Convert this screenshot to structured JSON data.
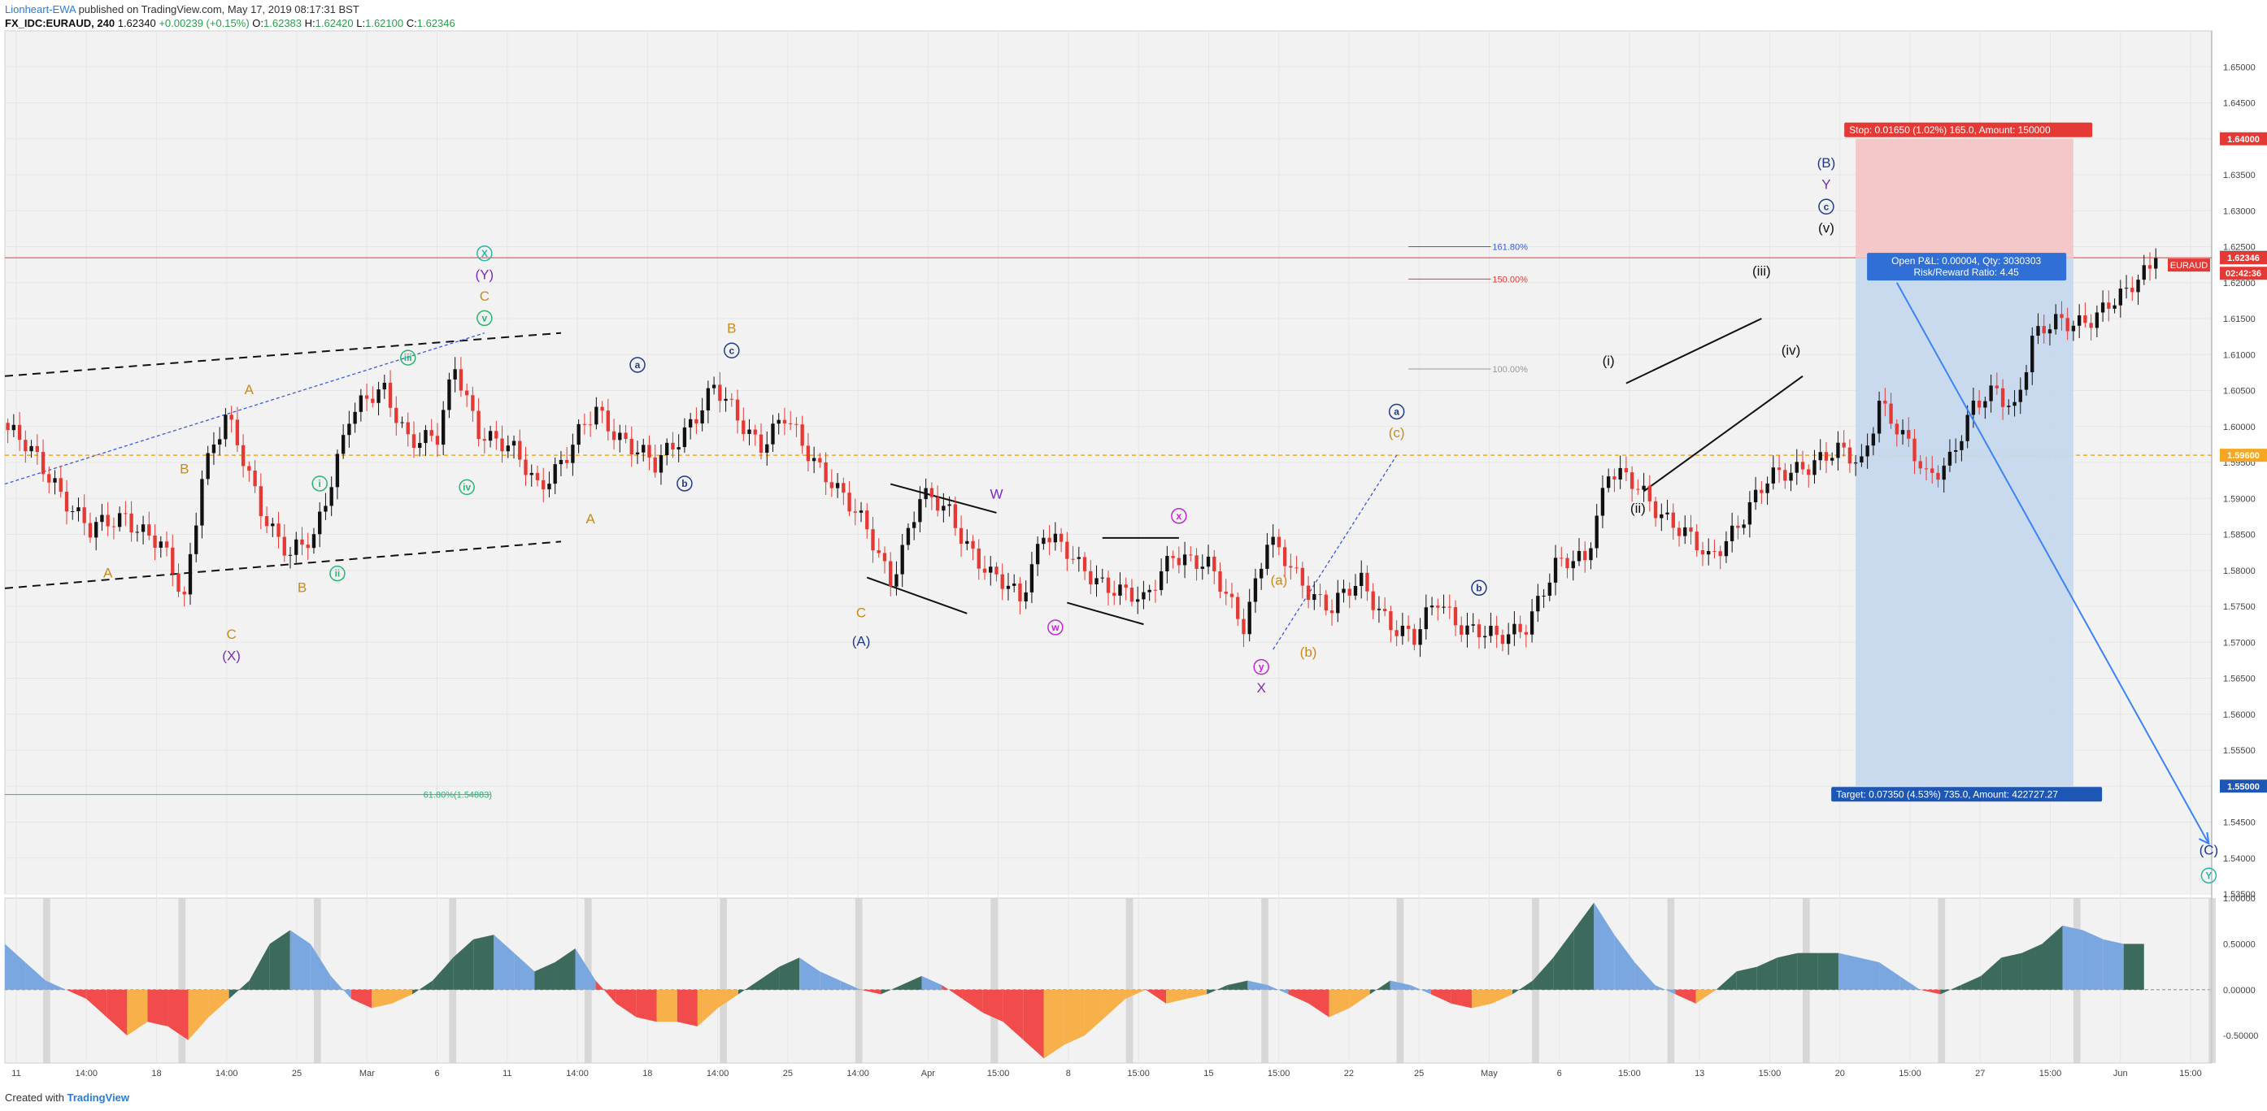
{
  "header": {
    "author": "Lionheart-EWA",
    "published": "published on TradingView.com, May 17, 2019 08:17:31 BST",
    "symbol": "FX_IDC:EURAUD, 240",
    "last": "1.62340",
    "change": "+0.00239 (+0.15%)",
    "o_label": "O:",
    "o": "1.62383",
    "h_label": "H:",
    "h": "1.62420",
    "l_label": "L:",
    "l": "1.62100",
    "c_label": "C:",
    "c": "1.62346"
  },
  "footer": {
    "created": "Created with",
    "brand": "TradingView"
  },
  "colors": {
    "up": "#111111",
    "down": "#e53935",
    "grid": "#e6e6e6",
    "bg": "#f2f2f2",
    "stop_zone": "#f4c3c3",
    "target_zone": "#c4d7ee",
    "ma_line": "#f5a623",
    "hist_pos_light": "#7aa7e0",
    "hist_pos_dark": "#3c6a5c",
    "hist_neg_light": "#f8b04a",
    "hist_neg_dark": "#f24b4b"
  },
  "chart_data": {
    "type": "candlestick",
    "symbol": "FX_IDC:EURAUD",
    "interval": "240",
    "ylim": [
      1.535,
      1.655
    ],
    "y_ticks": [
      "1.65000",
      "1.64500",
      "1.64000",
      "1.63500",
      "1.63000",
      "1.62500",
      "1.62000",
      "1.61500",
      "1.61000",
      "1.60500",
      "1.60000",
      "1.59500",
      "1.59000",
      "1.58500",
      "1.58000",
      "1.57500",
      "1.57000",
      "1.56500",
      "1.56000",
      "1.55500",
      "1.55000",
      "1.54500",
      "1.54000",
      "1.53500"
    ],
    "x_ticks": [
      "11",
      "14:00",
      "18",
      "14:00",
      "25",
      "Mar",
      "6",
      "11",
      "14:00",
      "18",
      "14:00",
      "25",
      "14:00",
      "Apr",
      "15:00",
      "8",
      "15:00",
      "15",
      "15:00",
      "22",
      "25",
      "May",
      "6",
      "15:00",
      "13",
      "15:00",
      "20",
      "15:00",
      "27",
      "15:00",
      "Jun",
      "15:00"
    ],
    "price_anchors": [
      [
        0,
        1.5995
      ],
      [
        8,
        1.5925
      ],
      [
        14,
        1.585
      ],
      [
        20,
        1.588
      ],
      [
        26,
        1.583
      ],
      [
        30,
        1.576
      ],
      [
        33,
        1.594
      ],
      [
        37,
        1.601
      ],
      [
        43,
        1.589
      ],
      [
        48,
        1.582
      ],
      [
        52,
        1.584
      ],
      [
        58,
        1.602
      ],
      [
        64,
        1.6045
      ],
      [
        68,
        1.599
      ],
      [
        73,
        1.598
      ],
      [
        76,
        1.608
      ],
      [
        80,
        1.6
      ],
      [
        86,
        1.596
      ],
      [
        90,
        1.592
      ],
      [
        95,
        1.596
      ],
      [
        100,
        1.602
      ],
      [
        106,
        1.5975
      ],
      [
        110,
        1.594
      ],
      [
        116,
        1.601
      ],
      [
        120,
        1.605
      ],
      [
        124,
        1.601
      ],
      [
        128,
        1.598
      ],
      [
        132,
        1.601
      ],
      [
        135,
        1.597
      ],
      [
        140,
        1.593
      ],
      [
        146,
        1.585
      ],
      [
        150,
        1.579
      ],
      [
        155,
        1.59
      ],
      [
        160,
        1.588
      ],
      [
        167,
        1.579
      ],
      [
        172,
        1.576
      ],
      [
        176,
        1.586
      ],
      [
        182,
        1.58
      ],
      [
        188,
        1.578
      ],
      [
        193,
        1.575
      ],
      [
        198,
        1.583
      ],
      [
        204,
        1.58
      ],
      [
        210,
        1.573
      ],
      [
        214,
        1.584
      ],
      [
        219,
        1.579
      ],
      [
        225,
        1.575
      ],
      [
        230,
        1.578
      ],
      [
        235,
        1.573
      ],
      [
        239,
        1.57
      ],
      [
        243,
        1.576
      ],
      [
        248,
        1.572
      ],
      [
        253,
        1.57
      ],
      [
        258,
        1.573
      ],
      [
        263,
        1.58
      ],
      [
        268,
        1.582
      ],
      [
        272,
        1.594
      ],
      [
        277,
        1.591
      ],
      [
        283,
        1.587
      ],
      [
        289,
        1.581
      ],
      [
        294,
        1.587
      ],
      [
        299,
        1.592
      ],
      [
        305,
        1.595
      ],
      [
        311,
        1.596
      ],
      [
        315,
        1.595
      ],
      [
        318,
        1.604
      ],
      [
        322,
        1.598
      ],
      [
        326,
        1.593
      ],
      [
        330,
        1.596
      ],
      [
        334,
        1.602
      ],
      [
        338,
        1.605
      ],
      [
        341,
        1.603
      ],
      [
        344,
        1.612
      ],
      [
        348,
        1.614
      ],
      [
        352,
        1.615
      ],
      [
        356,
        1.616
      ],
      [
        360,
        1.618
      ],
      [
        362,
        1.621
      ],
      [
        365,
        1.6234
      ]
    ],
    "series": [
      {
        "type": "line",
        "values": [
          1.596
        ]
      },
      {
        "type": "histogram",
        "values": [
          0.5,
          0.3,
          0.1,
          0.0,
          -0.1,
          -0.3,
          -0.5,
          -0.35,
          -0.4,
          -0.55,
          -0.3,
          -0.1,
          0.1,
          0.5,
          0.65,
          0.5,
          0.15,
          -0.1,
          -0.2,
          -0.15,
          -0.05,
          0.1,
          0.35,
          0.55,
          0.6,
          0.4,
          0.2,
          0.3,
          0.45,
          0.1,
          -0.15,
          -0.3,
          -0.35,
          -0.35,
          -0.4,
          -0.2,
          -0.05,
          0.1,
          0.25,
          0.35,
          0.2,
          0.1,
          0.0,
          -0.05,
          0.05,
          0.15,
          0.05,
          -0.1,
          -0.25,
          -0.35,
          -0.55,
          -0.75,
          -0.6,
          -0.5,
          -0.3,
          -0.1,
          0.0,
          -0.15,
          -0.1,
          -0.05,
          0.05,
          0.1,
          0.05,
          -0.05,
          -0.15,
          -0.3,
          -0.2,
          -0.05,
          0.1,
          0.05,
          -0.05,
          -0.15,
          -0.2,
          -0.15,
          -0.05,
          0.1,
          0.35,
          0.65,
          0.95,
          0.6,
          0.3,
          0.05,
          -0.05,
          -0.15,
          0.0,
          0.2,
          0.25,
          0.35,
          0.4,
          0.4,
          0.4,
          0.35,
          0.3,
          0.15,
          0.0,
          -0.05,
          0.05,
          0.15,
          0.35,
          0.4,
          0.5,
          0.7,
          0.65,
          0.55,
          0.5,
          0.5
        ]
      }
    ],
    "oscillator_ylim": [
      -0.8,
      1.0
    ],
    "oscillator_ticks": [
      "1.00000",
      "0.50000",
      "0.00000",
      "-0.50000"
    ],
    "price_tags": [
      {
        "label": "1.64000",
        "value": 1.64,
        "color": "#e53935"
      },
      {
        "label": "1.62350",
        "value": 1.6235,
        "color": "#111111"
      },
      {
        "label": "1.62346",
        "value": 1.62346,
        "color": "#e53935"
      },
      {
        "label": "02:42:36",
        "value": 1.6213,
        "color": "#e53935"
      },
      {
        "label": "1.59600",
        "value": 1.596,
        "color": "#f5a623"
      },
      {
        "label": "1.55000",
        "value": 1.55,
        "color": "#1e56b5"
      }
    ],
    "symbol_tag": "EURAUD",
    "position": {
      "stop_text": "Stop: 0.01650 (1.02%) 165.0, Amount: 150000",
      "pnl_text": "Open P&L: 0.00004, Qty: 3030303",
      "rr_text": "Risk/Reward Ratio: 4.45",
      "target_text": "Target: 0.07350 (4.53%) 735.0, Amount: 422727.27",
      "entry": 1.62346,
      "stop": 1.64,
      "target": 1.55
    },
    "fib_levels": [
      {
        "label": "161.80%",
        "value": 1.625,
        "color": "#3b5bdb"
      },
      {
        "label": "150.00%",
        "value": 1.6205,
        "color": "#e53935"
      },
      {
        "label": "100.00%",
        "value": 1.608,
        "color": "#999999"
      },
      {
        "label": "61.80%(1.54883)",
        "value": 1.54883,
        "color": "#2ab573"
      }
    ],
    "wave_labels": [
      {
        "text": "A",
        "color": "#c98a1a",
        "circled": false,
        "x": 17,
        "y": 1.579
      },
      {
        "text": "B",
        "color": "#c98a1a",
        "circled": false,
        "x": 30,
        "y": 1.5935
      },
      {
        "text": "C",
        "color": "#c98a1a",
        "circled": false,
        "x": 38,
        "y": 1.5705
      },
      {
        "text": "(X)",
        "color": "#7b2cbf",
        "circled": false,
        "x": 38,
        "y": 1.5675
      },
      {
        "text": "A",
        "color": "#c98a1a",
        "circled": false,
        "x": 41,
        "y": 1.6045
      },
      {
        "text": "B",
        "color": "#c98a1a",
        "circled": false,
        "x": 50,
        "y": 1.577
      },
      {
        "text": "i",
        "color": "#2ab573",
        "circled": true,
        "x": 53,
        "y": 1.5915
      },
      {
        "text": "ii",
        "color": "#2ab573",
        "circled": true,
        "x": 56,
        "y": 1.579
      },
      {
        "text": "iii",
        "color": "#2ab573",
        "circled": true,
        "x": 68,
        "y": 1.609
      },
      {
        "text": "iv",
        "color": "#2ab573",
        "circled": true,
        "x": 78,
        "y": 1.591
      },
      {
        "text": "v",
        "color": "#2ab573",
        "circled": true,
        "x": 81,
        "y": 1.6145
      },
      {
        "text": "C",
        "color": "#c98a1a",
        "circled": false,
        "x": 81,
        "y": 1.6175
      },
      {
        "text": "(Y)",
        "color": "#7b2cbf",
        "circled": false,
        "x": 81,
        "y": 1.6205
      },
      {
        "text": "X",
        "color": "#2ab5a5",
        "circled": true,
        "x": 81,
        "y": 1.6235
      },
      {
        "text": "A",
        "color": "#c98a1a",
        "circled": false,
        "x": 99,
        "y": 1.5865
      },
      {
        "text": "a",
        "color": "#1e3a8a",
        "circled": true,
        "x": 107,
        "y": 1.608
      },
      {
        "text": "b",
        "color": "#1e3a8a",
        "circled": true,
        "x": 115,
        "y": 1.5915
      },
      {
        "text": "B",
        "color": "#c98a1a",
        "circled": false,
        "x": 123,
        "y": 1.613
      },
      {
        "text": "c",
        "color": "#1e3a8a",
        "circled": true,
        "x": 123,
        "y": 1.61
      },
      {
        "text": "C",
        "color": "#c98a1a",
        "circled": false,
        "x": 145,
        "y": 1.5735
      },
      {
        "text": "(A)",
        "color": "#1e3a8a",
        "circled": false,
        "x": 145,
        "y": 1.5695
      },
      {
        "text": "W",
        "color": "#7b2cbf",
        "circled": false,
        "x": 168,
        "y": 1.59
      },
      {
        "text": "w",
        "color": "#c026d3",
        "circled": true,
        "x": 178,
        "y": 1.5715
      },
      {
        "text": "x",
        "color": "#c026d3",
        "circled": true,
        "x": 199,
        "y": 1.587
      },
      {
        "text": "y",
        "color": "#c026d3",
        "circled": true,
        "x": 213,
        "y": 1.566
      },
      {
        "text": "X",
        "color": "#7b2cbf",
        "circled": false,
        "x": 213,
        "y": 1.563
      },
      {
        "text": "(a)",
        "color": "#c98a1a",
        "circled": false,
        "x": 216,
        "y": 1.578
      },
      {
        "text": "(b)",
        "color": "#c98a1a",
        "circled": false,
        "x": 221,
        "y": 1.568
      },
      {
        "text": "a",
        "color": "#1e3a8a",
        "circled": true,
        "x": 236,
        "y": 1.6015
      },
      {
        "text": "(c)",
        "color": "#c98a1a",
        "circled": false,
        "x": 236,
        "y": 1.5985
      },
      {
        "text": "b",
        "color": "#1e3a8a",
        "circled": true,
        "x": 250,
        "y": 1.577
      },
      {
        "text": "(i)",
        "color": "#111111",
        "circled": false,
        "x": 272,
        "y": 1.6085
      },
      {
        "text": "(ii)",
        "color": "#111111",
        "circled": false,
        "x": 277,
        "y": 1.588
      },
      {
        "text": "(iii)",
        "color": "#111111",
        "circled": false,
        "x": 298,
        "y": 1.621
      },
      {
        "text": "(iv)",
        "color": "#111111",
        "circled": false,
        "x": 303,
        "y": 1.61
      },
      {
        "text": "(v)",
        "color": "#111111",
        "circled": false,
        "x": 309,
        "y": 1.627
      },
      {
        "text": "c",
        "color": "#1e3a8a",
        "circled": true,
        "x": 309,
        "y": 1.63
      },
      {
        "text": "Y",
        "color": "#7b2cbf",
        "circled": false,
        "x": 309,
        "y": 1.633
      },
      {
        "text": "(B)",
        "color": "#1e3a8a",
        "circled": false,
        "x": 309,
        "y": 1.636
      },
      {
        "text": "(C)",
        "color": "#1e3a8a",
        "circled": false,
        "x": 374,
        "y": 1.5405
      },
      {
        "text": "Y",
        "color": "#2ab5a5",
        "circled": true,
        "x": 374,
        "y": 1.537
      }
    ]
  }
}
